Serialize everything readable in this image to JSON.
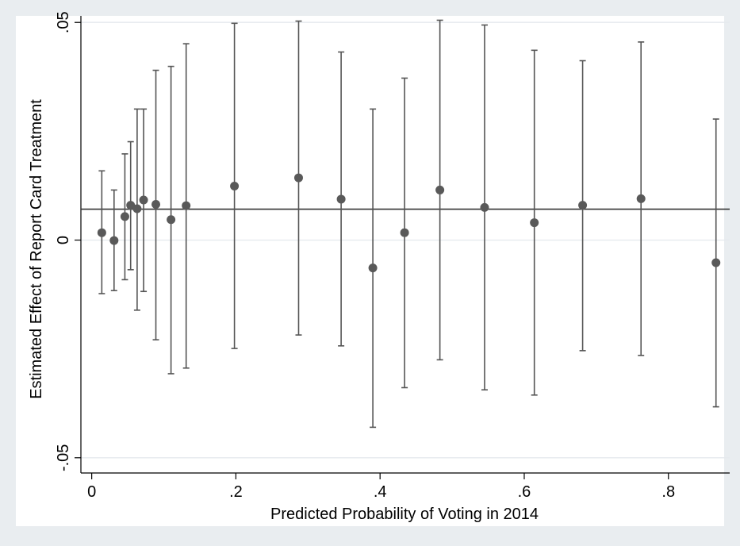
{
  "chart_data": {
    "type": "scatter",
    "title": "",
    "xlabel": "Predicted Probability of Voting in 2014",
    "ylabel": "Estimated Effect of Report Card Treatment",
    "xlim": [
      -0.015,
      0.885
    ],
    "ylim": [
      -0.0535,
      0.0515
    ],
    "x_ticks": [
      {
        "value": 0,
        "label": "0"
      },
      {
        "value": 0.2,
        "label": ".2"
      },
      {
        "value": 0.4,
        "label": ".4"
      },
      {
        "value": 0.6,
        "label": ".6"
      },
      {
        "value": 0.8,
        "label": ".8"
      }
    ],
    "y_ticks": [
      {
        "value": -0.05,
        "label": "-.05"
      },
      {
        "value": 0,
        "label": "0"
      },
      {
        "value": 0.05,
        "label": ".05"
      }
    ],
    "grid": "horizontal",
    "reference_line_y": 0.0071,
    "points": [
      {
        "x": 0.014,
        "y": 0.0017,
        "lo": -0.0123,
        "hi": 0.0159
      },
      {
        "x": 0.031,
        "y": -0.0001,
        "lo": -0.0116,
        "hi": 0.0115
      },
      {
        "x": 0.046,
        "y": 0.0054,
        "lo": -0.0091,
        "hi": 0.0198
      },
      {
        "x": 0.054,
        "y": 0.008,
        "lo": -0.0068,
        "hi": 0.0226
      },
      {
        "x": 0.063,
        "y": 0.0072,
        "lo": -0.0161,
        "hi": 0.0301
      },
      {
        "x": 0.072,
        "y": 0.0092,
        "lo": -0.0118,
        "hi": 0.0301
      },
      {
        "x": 0.089,
        "y": 0.0082,
        "lo": -0.0229,
        "hi": 0.039
      },
      {
        "x": 0.11,
        "y": 0.0047,
        "lo": -0.0307,
        "hi": 0.0399
      },
      {
        "x": 0.131,
        "y": 0.0079,
        "lo": -0.0294,
        "hi": 0.0451
      },
      {
        "x": 0.198,
        "y": 0.0124,
        "lo": -0.0249,
        "hi": 0.0498
      },
      {
        "x": 0.287,
        "y": 0.0143,
        "lo": -0.0218,
        "hi": 0.0503
      },
      {
        "x": 0.346,
        "y": 0.0094,
        "lo": -0.0243,
        "hi": 0.0432
      },
      {
        "x": 0.39,
        "y": -0.0064,
        "lo": -0.043,
        "hi": 0.0301
      },
      {
        "x": 0.434,
        "y": 0.0017,
        "lo": -0.0339,
        "hi": 0.0372
      },
      {
        "x": 0.483,
        "y": 0.0115,
        "lo": -0.0275,
        "hi": 0.0505
      },
      {
        "x": 0.545,
        "y": 0.0075,
        "lo": -0.0344,
        "hi": 0.0494
      },
      {
        "x": 0.614,
        "y": 0.004,
        "lo": -0.0356,
        "hi": 0.0436
      },
      {
        "x": 0.681,
        "y": 0.008,
        "lo": -0.0254,
        "hi": 0.0412
      },
      {
        "x": 0.762,
        "y": 0.0095,
        "lo": -0.0265,
        "hi": 0.0455
      },
      {
        "x": 0.866,
        "y": -0.0052,
        "lo": -0.0383,
        "hi": 0.0278
      }
    ]
  }
}
